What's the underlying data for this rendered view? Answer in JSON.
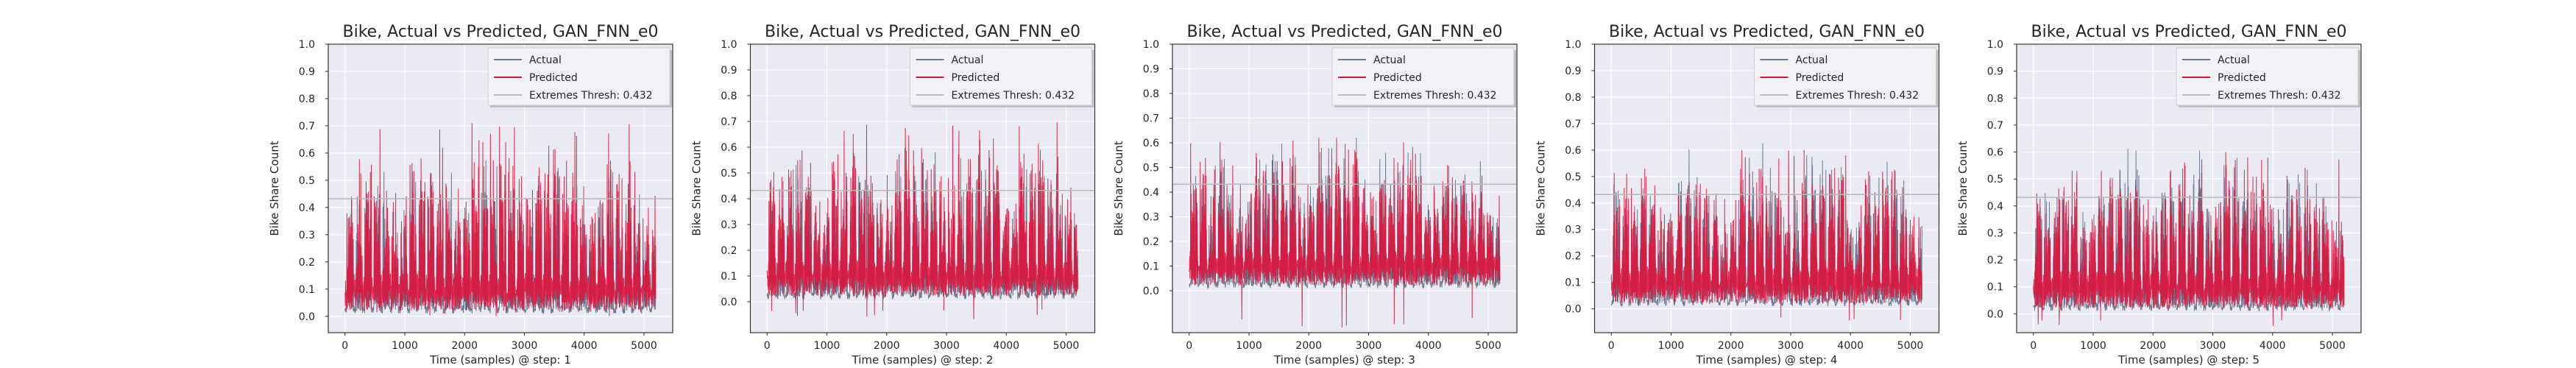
{
  "figure": {
    "type": "line",
    "num_panels": 5
  },
  "colors": {
    "actual": "#6e7a8f",
    "predicted": "#dc143c",
    "threshold": "#b8b8b8",
    "panel_bg": "#eaeaf2",
    "grid": "#ffffff",
    "text": "#262626"
  },
  "chart_data": [
    {
      "type": "line",
      "title": "Bike, Actual vs Predicted, GAN_FNN_e0",
      "xlabel": "Time (samples) @ step: 1",
      "ylabel": "Bike Share Count",
      "xlim": [
        -280,
        5480
      ],
      "ylim": [
        -0.06,
        1.0
      ],
      "xticks": [
        0,
        1000,
        2000,
        3000,
        4000,
        5000
      ],
      "yticks": [
        0.0,
        0.1,
        0.2,
        0.3,
        0.4,
        0.5,
        0.6,
        0.7,
        0.8,
        0.9,
        1.0
      ],
      "threshold": 0.432,
      "legend": [
        "Actual",
        "Predicted",
        "Extremes Thresh: 0.432"
      ],
      "legend_position": "top-right",
      "series": [
        {
          "name": "Actual",
          "approx_range": [
            0.0,
            0.62
          ]
        },
        {
          "name": "Predicted",
          "approx_range": [
            0.0,
            0.71
          ]
        }
      ],
      "n_samples": 5200,
      "seed": 11
    },
    {
      "type": "line",
      "title": "Bike, Actual vs Predicted, GAN_FNN_e0",
      "xlabel": "Time (samples) @ step: 2",
      "ylabel": "Bike Share Count",
      "xlim": [
        -280,
        5480
      ],
      "ylim": [
        -0.12,
        1.0
      ],
      "xticks": [
        0,
        1000,
        2000,
        3000,
        4000,
        5000
      ],
      "yticks": [
        0.0,
        0.1,
        0.2,
        0.3,
        0.4,
        0.5,
        0.6,
        0.7,
        0.8,
        0.9,
        1.0
      ],
      "threshold": 0.432,
      "legend": [
        "Actual",
        "Predicted",
        "Extremes Thresh: 0.432"
      ],
      "legend_position": "top-right",
      "series": [
        {
          "name": "Actual",
          "approx_range": [
            0.0,
            0.62
          ]
        },
        {
          "name": "Predicted",
          "approx_range": [
            -0.07,
            0.71
          ]
        }
      ],
      "n_samples": 5200,
      "seed": 23
    },
    {
      "type": "line",
      "title": "Bike, Actual vs Predicted, GAN_FNN_e0",
      "xlabel": "Time (samples) @ step: 3",
      "ylabel": "Bike Share Count",
      "xlim": [
        -280,
        5480
      ],
      "ylim": [
        -0.17,
        1.0
      ],
      "xticks": [
        0,
        1000,
        2000,
        3000,
        4000,
        5000
      ],
      "yticks": [
        0.0,
        0.1,
        0.2,
        0.3,
        0.4,
        0.5,
        0.6,
        0.7,
        0.8,
        0.9,
        1.0
      ],
      "threshold": 0.432,
      "legend": [
        "Actual",
        "Predicted",
        "Extremes Thresh: 0.432"
      ],
      "legend_position": "top-right",
      "series": [
        {
          "name": "Actual",
          "approx_range": [
            0.0,
            0.66
          ]
        },
        {
          "name": "Predicted",
          "approx_range": [
            -0.15,
            0.62
          ]
        }
      ],
      "n_samples": 5200,
      "seed": 37
    },
    {
      "type": "line",
      "title": "Bike, Actual vs Predicted, GAN_FNN_e0",
      "xlabel": "Time (samples) @ step: 4",
      "ylabel": "Bike Share Count",
      "xlim": [
        -280,
        5480
      ],
      "ylim": [
        -0.09,
        1.0
      ],
      "xticks": [
        0,
        1000,
        2000,
        3000,
        4000,
        5000
      ],
      "yticks": [
        0.0,
        0.1,
        0.2,
        0.3,
        0.4,
        0.5,
        0.6,
        0.7,
        0.8,
        0.9,
        1.0
      ],
      "threshold": 0.432,
      "legend": [
        "Actual",
        "Predicted",
        "Extremes Thresh: 0.432"
      ],
      "legend_position": "top-right",
      "series": [
        {
          "name": "Actual",
          "approx_range": [
            0.0,
            0.65
          ]
        },
        {
          "name": "Predicted",
          "approx_range": [
            -0.06,
            0.6
          ]
        }
      ],
      "n_samples": 5200,
      "seed": 53
    },
    {
      "type": "line",
      "title": "Bike, Actual vs Predicted, GAN_FNN_e0",
      "xlabel": "Time (samples) @ step: 5",
      "ylabel": "Bike Share Count",
      "xlim": [
        -280,
        5480
      ],
      "ylim": [
        -0.07,
        1.0
      ],
      "xticks": [
        0,
        1000,
        2000,
        3000,
        4000,
        5000
      ],
      "yticks": [
        0.0,
        0.1,
        0.2,
        0.3,
        0.4,
        0.5,
        0.6,
        0.7,
        0.8,
        0.9,
        1.0
      ],
      "threshold": 0.432,
      "legend": [
        "Actual",
        "Predicted",
        "Extremes Thresh: 0.432"
      ],
      "legend_position": "top-right",
      "series": [
        {
          "name": "Actual",
          "approx_range": [
            0.0,
            0.65
          ]
        },
        {
          "name": "Predicted",
          "approx_range": [
            -0.05,
            0.6
          ]
        }
      ],
      "n_samples": 5200,
      "seed": 71
    }
  ]
}
